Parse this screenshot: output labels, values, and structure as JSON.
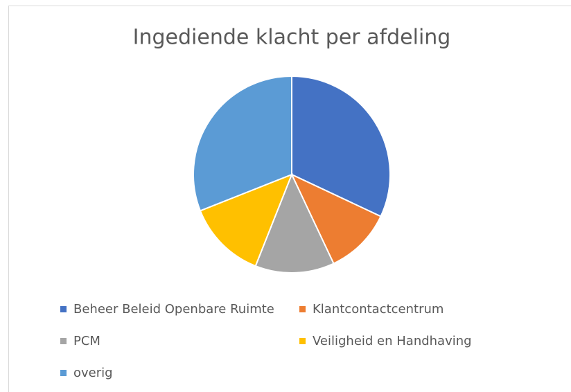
{
  "chart_data": {
    "type": "pie",
    "title": "Ingediende klacht per afdeling",
    "categories": [
      "Beheer Beleid Openbare Ruimte",
      "Klantcontactcentrum",
      "PCM",
      "Veiligheid en Handhaving",
      "overig"
    ],
    "values": [
      32,
      11,
      13,
      13,
      31
    ],
    "colors": [
      "#4472c4",
      "#ed7d31",
      "#a5a5a5",
      "#ffc000",
      "#5b9bd5"
    ],
    "legend": "bottom"
  }
}
